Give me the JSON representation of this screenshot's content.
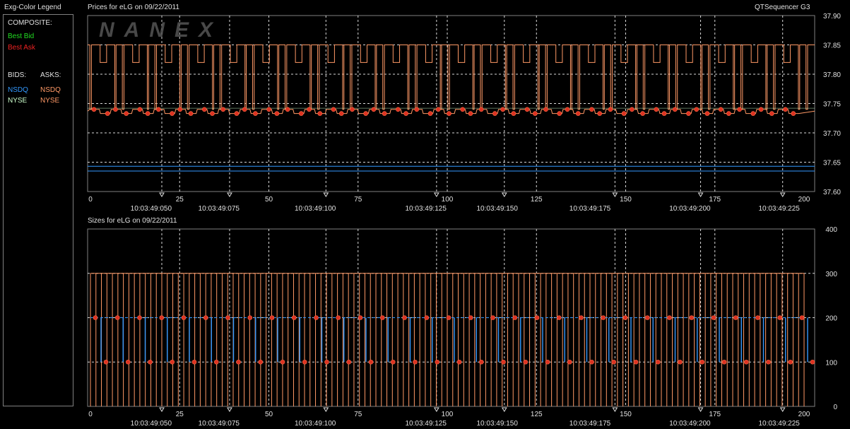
{
  "legend": {
    "title": "Exg-Color Legend",
    "composite_heading": "COMPOSITE:",
    "best_bid": "Best Bid",
    "best_ask": "Best Ask",
    "bids_heading": "BIDS:",
    "asks_heading": "ASKS:",
    "bids": [
      "NSDQ",
      "NYSE"
    ],
    "asks": [
      "NSDQ",
      "NYSE"
    ]
  },
  "app_title": "QTSequencer G3",
  "colors": {
    "best_bid": "#22dd22",
    "best_ask": "#ee2222",
    "nsdq_bid": "#3399ff",
    "nyse_bid": "#ccffcc",
    "nsdq_ask": "#ff9966",
    "nyse_ask": "#ff9966",
    "frame": "#808080",
    "grid": "#d8d8d8"
  },
  "watermark": "NANEX",
  "chart_data": [
    {
      "type": "line",
      "title": "Prices for  eLG  on  09/22/2011",
      "xlim": [
        0,
        200
      ],
      "x_ticks": [
        0,
        25,
        50,
        75,
        100,
        125,
        150,
        175,
        200
      ],
      "ylim": [
        37.6,
        37.9
      ],
      "y_ticks": [
        "37.90",
        "37.85",
        "37.80",
        "37.75",
        "37.70",
        "37.65",
        "37.60"
      ],
      "time_labels": [
        "10:03:49:050",
        "10:03:49:075",
        "10:03:49:100",
        "10:03:49:125",
        "10:03:49:150",
        "10:03:49:175",
        "10:03:49:200",
        "10:03:49:225"
      ],
      "time_label_x": [
        17,
        36,
        63,
        94,
        114,
        140,
        168,
        193
      ],
      "time_marker_x": [
        20,
        39,
        66,
        97,
        116,
        147,
        171,
        194
      ],
      "grid": true,
      "series": [
        {
          "name": "NSDQ",
          "role": "ask",
          "description": "oscillates between 37.82 and 37.85 with drops to 37.74",
          "values": [
            37.85,
            37.82,
            37.74
          ]
        },
        {
          "name": "NYSE",
          "role": "ask",
          "description": "sawtooth near 37.73 to 37.74 with markers",
          "values": [
            37.73,
            37.74
          ]
        },
        {
          "name": "NSDQ",
          "role": "bid",
          "values": [
            37.635,
            37.643
          ]
        }
      ]
    },
    {
      "type": "bar",
      "title": "Sizes for  eLG  on  09/22/2011",
      "xlim": [
        0,
        200
      ],
      "x_ticks": [
        0,
        25,
        50,
        75,
        100,
        125,
        150,
        175,
        200
      ],
      "ylim": [
        0,
        400
      ],
      "y_ticks": [
        "400",
        "300",
        "200",
        "100",
        "0"
      ],
      "time_labels": [
        "10:03:49:050",
        "10:03:49:075",
        "10:03:49:100",
        "10:03:49:125",
        "10:03:49:150",
        "10:03:49:175",
        "10:03:49:200",
        "10:03:49:225"
      ],
      "time_label_x": [
        17,
        36,
        63,
        94,
        114,
        140,
        168,
        193
      ],
      "time_marker_x": [
        20,
        39,
        66,
        97,
        116,
        147,
        171,
        194
      ],
      "grid": true,
      "series": [
        {
          "name": "NSDQ",
          "role": "ask",
          "values": [
            300
          ]
        },
        {
          "name": "NSDQ",
          "role": "bid",
          "values": [
            200
          ]
        },
        {
          "name": "NYSE",
          "role": "ask",
          "values": [
            100,
            200
          ]
        }
      ]
    }
  ]
}
